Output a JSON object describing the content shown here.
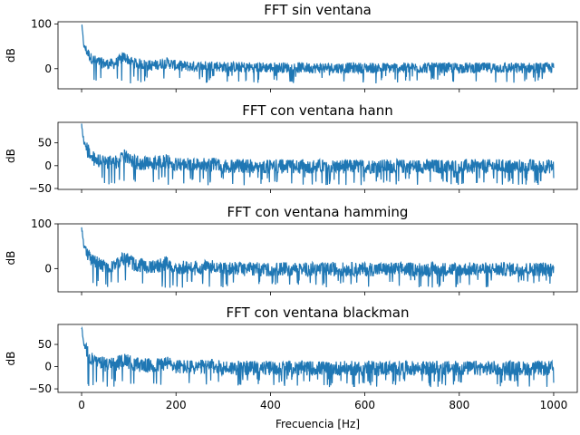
{
  "chart_data": [
    {
      "type": "line",
      "title": "FFT sin ventana",
      "xlabel": "",
      "ylabel": "dB",
      "xlim": [
        -50,
        1050
      ],
      "ylim": [
        -45,
        105
      ],
      "xticks": [
        0,
        200,
        400,
        600,
        800,
        1000
      ],
      "xtick_labels": [
        "",
        "",
        "",
        "",
        "",
        ""
      ],
      "yticks": [
        0,
        100
      ],
      "ytick_labels": [
        "0",
        "100"
      ],
      "color": "#1f77b4",
      "x": [
        0,
        5,
        10,
        20,
        30,
        50,
        70,
        90,
        110,
        150,
        180,
        200,
        240,
        280,
        300,
        400,
        500,
        600,
        700,
        800,
        900,
        1000
      ],
      "y": [
        100,
        50,
        42,
        25,
        18,
        12,
        12,
        28,
        14,
        8,
        15,
        8,
        6,
        8,
        5,
        4,
        3,
        3,
        3,
        3,
        3,
        3
      ],
      "noise_floor": -15,
      "noise_top": 12
    },
    {
      "type": "line",
      "title": "FFT con ventana hann",
      "xlabel": "",
      "ylabel": "dB",
      "xlim": [
        -50,
        1050
      ],
      "ylim": [
        -52,
        95
      ],
      "xticks": [
        0,
        200,
        400,
        600,
        800,
        1000
      ],
      "xtick_labels": [
        "",
        "",
        "",
        "",
        "",
        ""
      ],
      "yticks": [
        -50,
        0,
        50
      ],
      "ytick_labels": [
        "−50",
        "0",
        "50"
      ],
      "color": "#1f77b4",
      "x": [
        0,
        5,
        10,
        20,
        30,
        50,
        70,
        90,
        110,
        150,
        180,
        200,
        240,
        280,
        300,
        400,
        500,
        600,
        700,
        800,
        900,
        1000
      ],
      "y": [
        88,
        50,
        40,
        22,
        14,
        8,
        8,
        22,
        10,
        4,
        12,
        4,
        2,
        4,
        1,
        0,
        0,
        0,
        0,
        0,
        0,
        0
      ],
      "noise_floor": -25,
      "noise_top": 10
    },
    {
      "type": "line",
      "title": "FFT con ventana hamming",
      "xlabel": "",
      "ylabel": "dB",
      "xlim": [
        -50,
        1050
      ],
      "ylim": [
        -52,
        100
      ],
      "xticks": [
        0,
        200,
        400,
        600,
        800,
        1000
      ],
      "xtick_labels": [
        "",
        "",
        "",
        "",
        "",
        ""
      ],
      "yticks": [
        0,
        100
      ],
      "ytick_labels": [
        "0",
        "100"
      ],
      "color": "#1f77b4",
      "x": [
        0,
        5,
        10,
        20,
        30,
        50,
        70,
        90,
        110,
        150,
        180,
        200,
        240,
        280,
        300,
        400,
        500,
        600,
        700,
        800,
        900,
        1000
      ],
      "y": [
        92,
        50,
        42,
        22,
        14,
        8,
        8,
        26,
        12,
        4,
        14,
        4,
        2,
        6,
        1,
        0,
        0,
        0,
        0,
        0,
        0,
        0
      ],
      "noise_floor": -25,
      "noise_top": 10
    },
    {
      "type": "line",
      "title": "FFT con ventana blackman",
      "xlabel": "Frecuencia [Hz]",
      "ylabel": "dB",
      "xlim": [
        -50,
        1050
      ],
      "ylim": [
        -58,
        95
      ],
      "xticks": [
        0,
        200,
        400,
        600,
        800,
        1000
      ],
      "xtick_labels": [
        "0",
        "200",
        "400",
        "600",
        "800",
        "1000"
      ],
      "yticks": [
        -50,
        0,
        50
      ],
      "ytick_labels": [
        "−50",
        "0",
        "50"
      ],
      "color": "#1f77b4",
      "x": [
        0,
        5,
        10,
        20,
        30,
        50,
        70,
        90,
        110,
        150,
        180,
        200,
        240,
        280,
        300,
        400,
        500,
        600,
        700,
        800,
        900,
        1000
      ],
      "y": [
        88,
        48,
        38,
        20,
        12,
        6,
        6,
        18,
        8,
        2,
        10,
        2,
        0,
        2,
        -1,
        -2,
        -2,
        -2,
        -2,
        -2,
        -2,
        -2
      ],
      "noise_floor": -28,
      "noise_top": 9
    }
  ]
}
